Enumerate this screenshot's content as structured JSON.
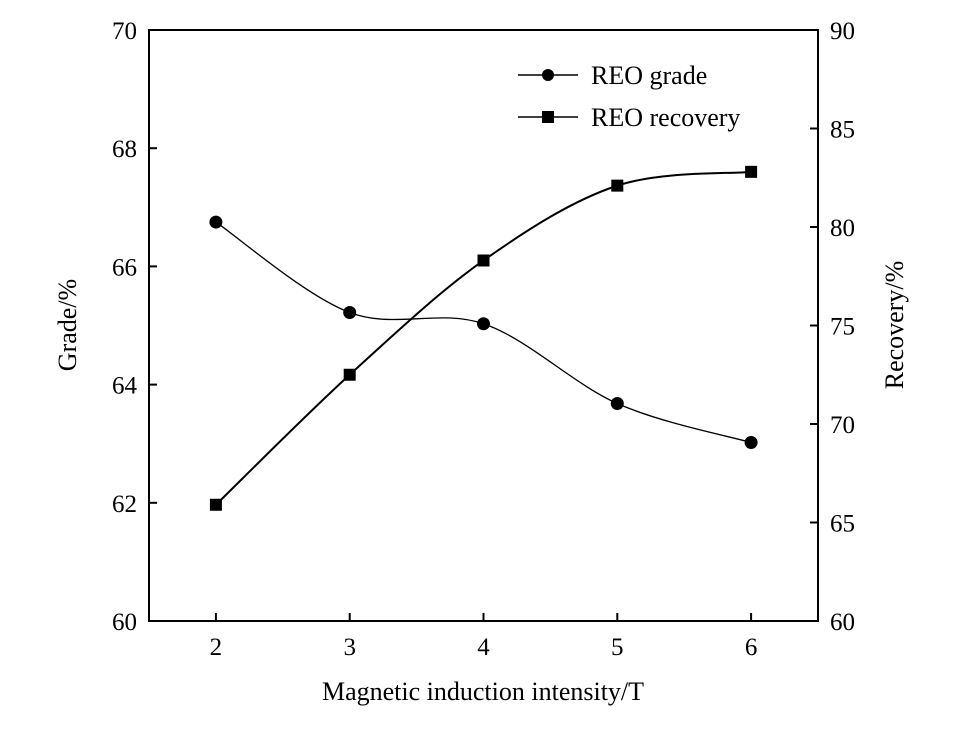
{
  "chart_data": {
    "type": "line",
    "title": "",
    "xlabel": "Magnetic induction intensity/T",
    "ylabel_left": "Grade/%",
    "ylabel_right": "Recovery/%",
    "x": [
      2,
      3,
      4,
      5,
      6
    ],
    "xticks": [
      "2",
      "3",
      "4",
      "5",
      "6"
    ],
    "xlim": [
      1.5,
      6.5
    ],
    "ylim_left": [
      60,
      70
    ],
    "yticks_left": [
      "60",
      "62",
      "64",
      "66",
      "68",
      "70"
    ],
    "ylim_right": [
      60,
      90
    ],
    "yticks_right": [
      "60",
      "65",
      "70",
      "75",
      "80",
      "85",
      "90"
    ],
    "grid": false,
    "legend_position": "top-right",
    "series": [
      {
        "name": "REO grade",
        "axis": "left",
        "marker": "circle",
        "values": [
          66.75,
          65.22,
          65.03,
          63.68,
          63.02
        ]
      },
      {
        "name": "REO recovery",
        "axis": "right",
        "marker": "square",
        "values": [
          65.9,
          72.5,
          78.3,
          82.1,
          82.8
        ]
      }
    ]
  }
}
